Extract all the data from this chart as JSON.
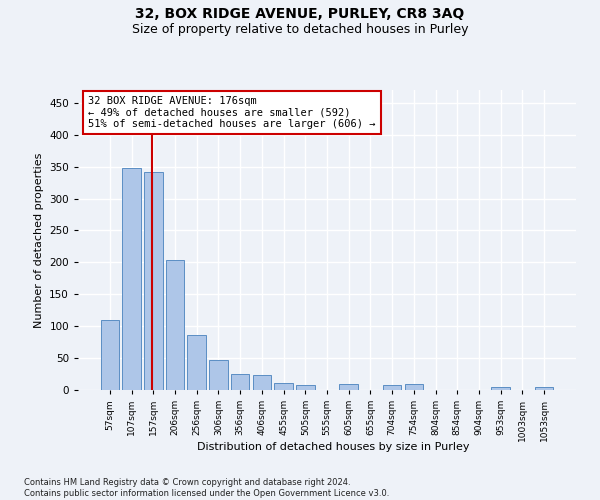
{
  "title1": "32, BOX RIDGE AVENUE, PURLEY, CR8 3AQ",
  "title2": "Size of property relative to detached houses in Purley",
  "xlabel": "Distribution of detached houses by size in Purley",
  "ylabel": "Number of detached properties",
  "bar_labels": [
    "57sqm",
    "107sqm",
    "157sqm",
    "206sqm",
    "256sqm",
    "306sqm",
    "356sqm",
    "406sqm",
    "455sqm",
    "505sqm",
    "555sqm",
    "605sqm",
    "655sqm",
    "704sqm",
    "754sqm",
    "804sqm",
    "854sqm",
    "904sqm",
    "953sqm",
    "1003sqm",
    "1053sqm"
  ],
  "bar_values": [
    110,
    348,
    342,
    203,
    86,
    47,
    25,
    23,
    11,
    8,
    0,
    9,
    0,
    8,
    9,
    0,
    0,
    0,
    5,
    0,
    5
  ],
  "bar_color": "#aec6e8",
  "bar_edge_color": "#5b8ec4",
  "vline_color": "#cc0000",
  "annotation_text": "32 BOX RIDGE AVENUE: 176sqm\n← 49% of detached houses are smaller (592)\n51% of semi-detached houses are larger (606) →",
  "annotation_box_color": "#ffffff",
  "annotation_box_edge_color": "#cc0000",
  "ylim": [
    0,
    470
  ],
  "yticks": [
    0,
    50,
    100,
    150,
    200,
    250,
    300,
    350,
    400,
    450
  ],
  "footer_text": "Contains HM Land Registry data © Crown copyright and database right 2024.\nContains public sector information licensed under the Open Government Licence v3.0.",
  "bg_color": "#eef2f8",
  "grid_color": "#ffffff"
}
